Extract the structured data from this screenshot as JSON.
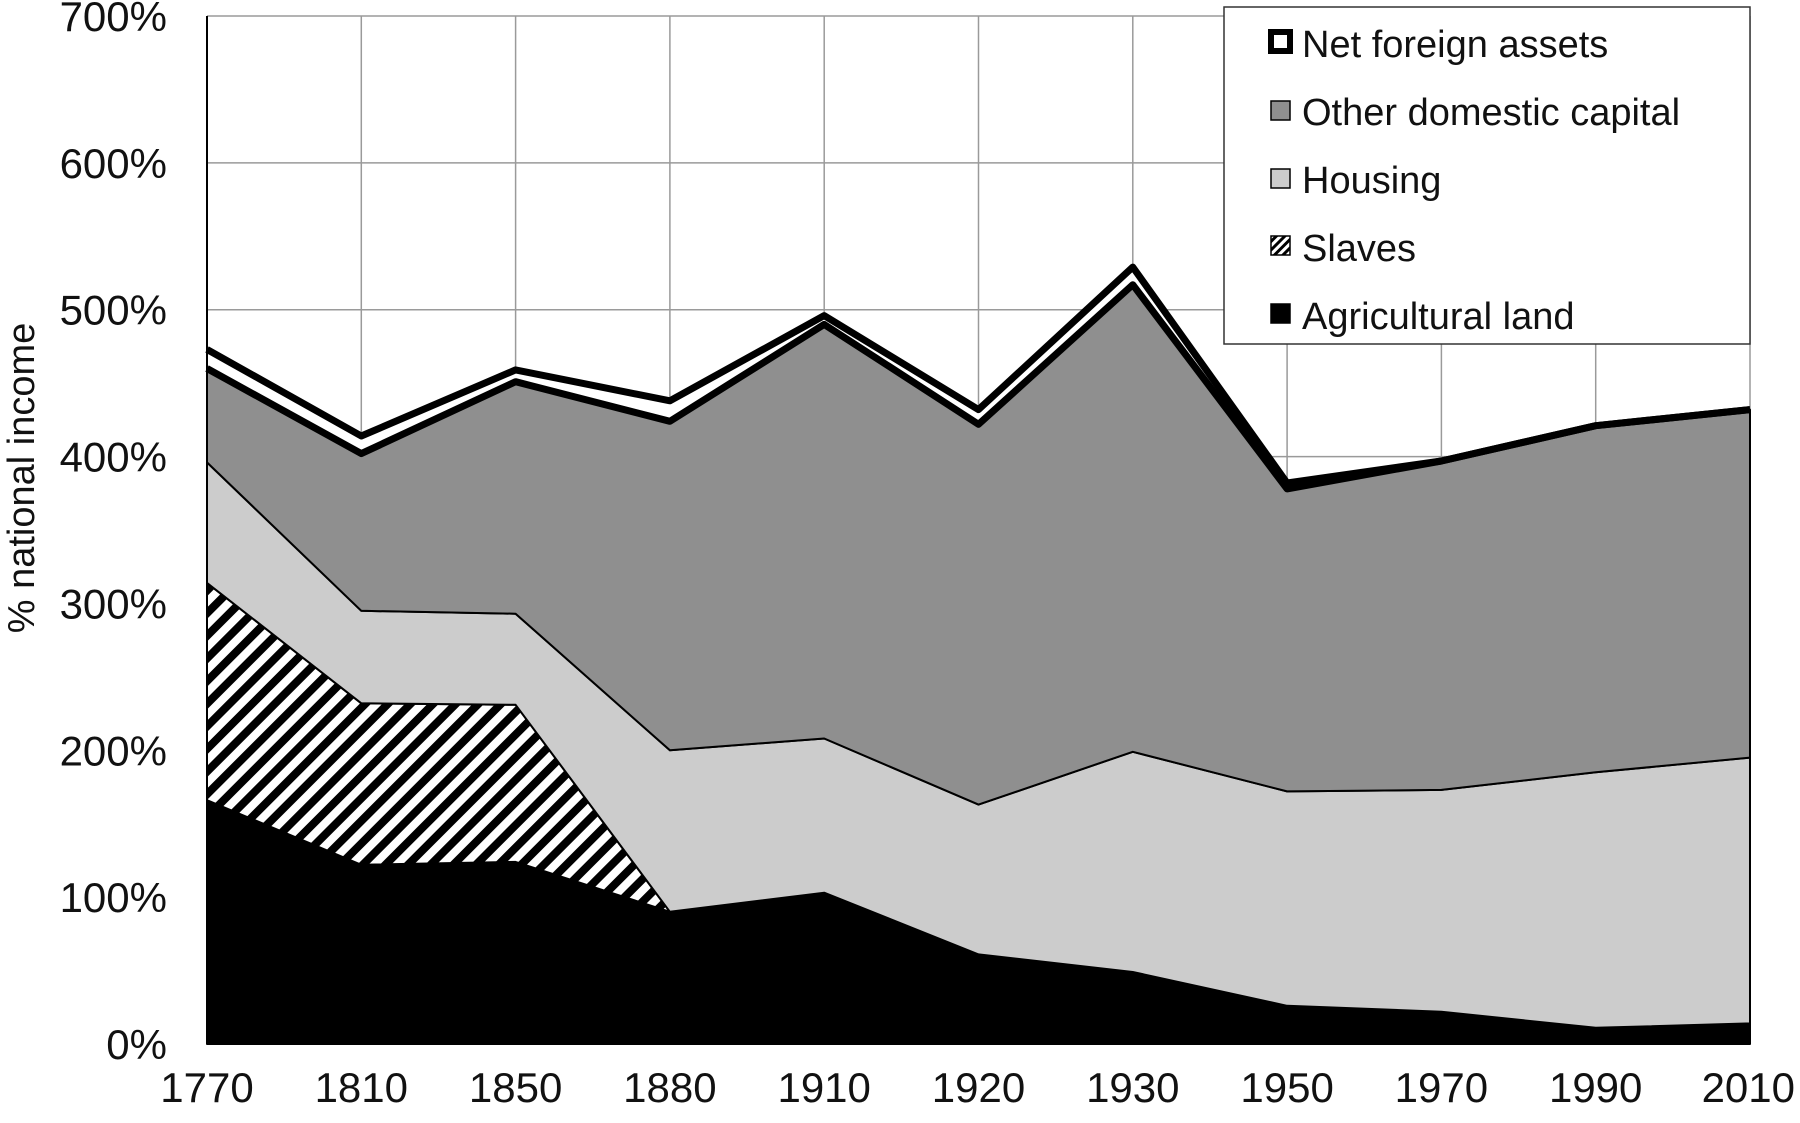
{
  "chart_data": {
    "type": "area",
    "stacked": true,
    "title": "",
    "xlabel": "",
    "ylabel": "% national income",
    "x": [
      "1770",
      "1810",
      "1850",
      "1880",
      "1910",
      "1920",
      "1930",
      "1950",
      "1970",
      "1990",
      "2010"
    ],
    "ylim": [
      0,
      700
    ],
    "yticks": [
      0,
      100,
      200,
      300,
      400,
      500,
      600,
      700
    ],
    "ytick_labels": [
      "0%",
      "100%",
      "200%",
      "300%",
      "400%",
      "500%",
      "600%",
      "700%"
    ],
    "grid": true,
    "legend_position": "top-right",
    "series": [
      {
        "name": "Agricultural land",
        "fill": "black",
        "values": [
          166,
          122,
          124,
          90,
          103,
          61,
          49,
          26,
          22,
          11,
          14
        ]
      },
      {
        "name": "Slaves",
        "fill": "hatch",
        "values": [
          148,
          110,
          107,
          0,
          0,
          0,
          0,
          0,
          0,
          0,
          0
        ]
      },
      {
        "name": "Housing",
        "fill": "light-gray",
        "values": [
          82,
          63,
          62,
          110,
          105,
          102,
          150,
          146,
          151,
          174,
          181
        ]
      },
      {
        "name": "Other domestic capital",
        "fill": "mid-gray",
        "values": [
          64,
          107,
          158,
          224,
          282,
          259,
          318,
          206,
          224,
          236,
          237
        ]
      },
      {
        "name": "Net foreign assets",
        "fill": "white",
        "values": [
          13,
          12,
          8,
          14,
          6,
          10,
          12,
          4,
          0,
          0,
          0
        ]
      }
    ],
    "colors": {
      "Agricultural land": "#000000",
      "Slaves": "#ffffff",
      "Housing": "#cccccc",
      "Other domestic capital": "#8f8f8f",
      "Net foreign assets": "#ffffff"
    }
  }
}
